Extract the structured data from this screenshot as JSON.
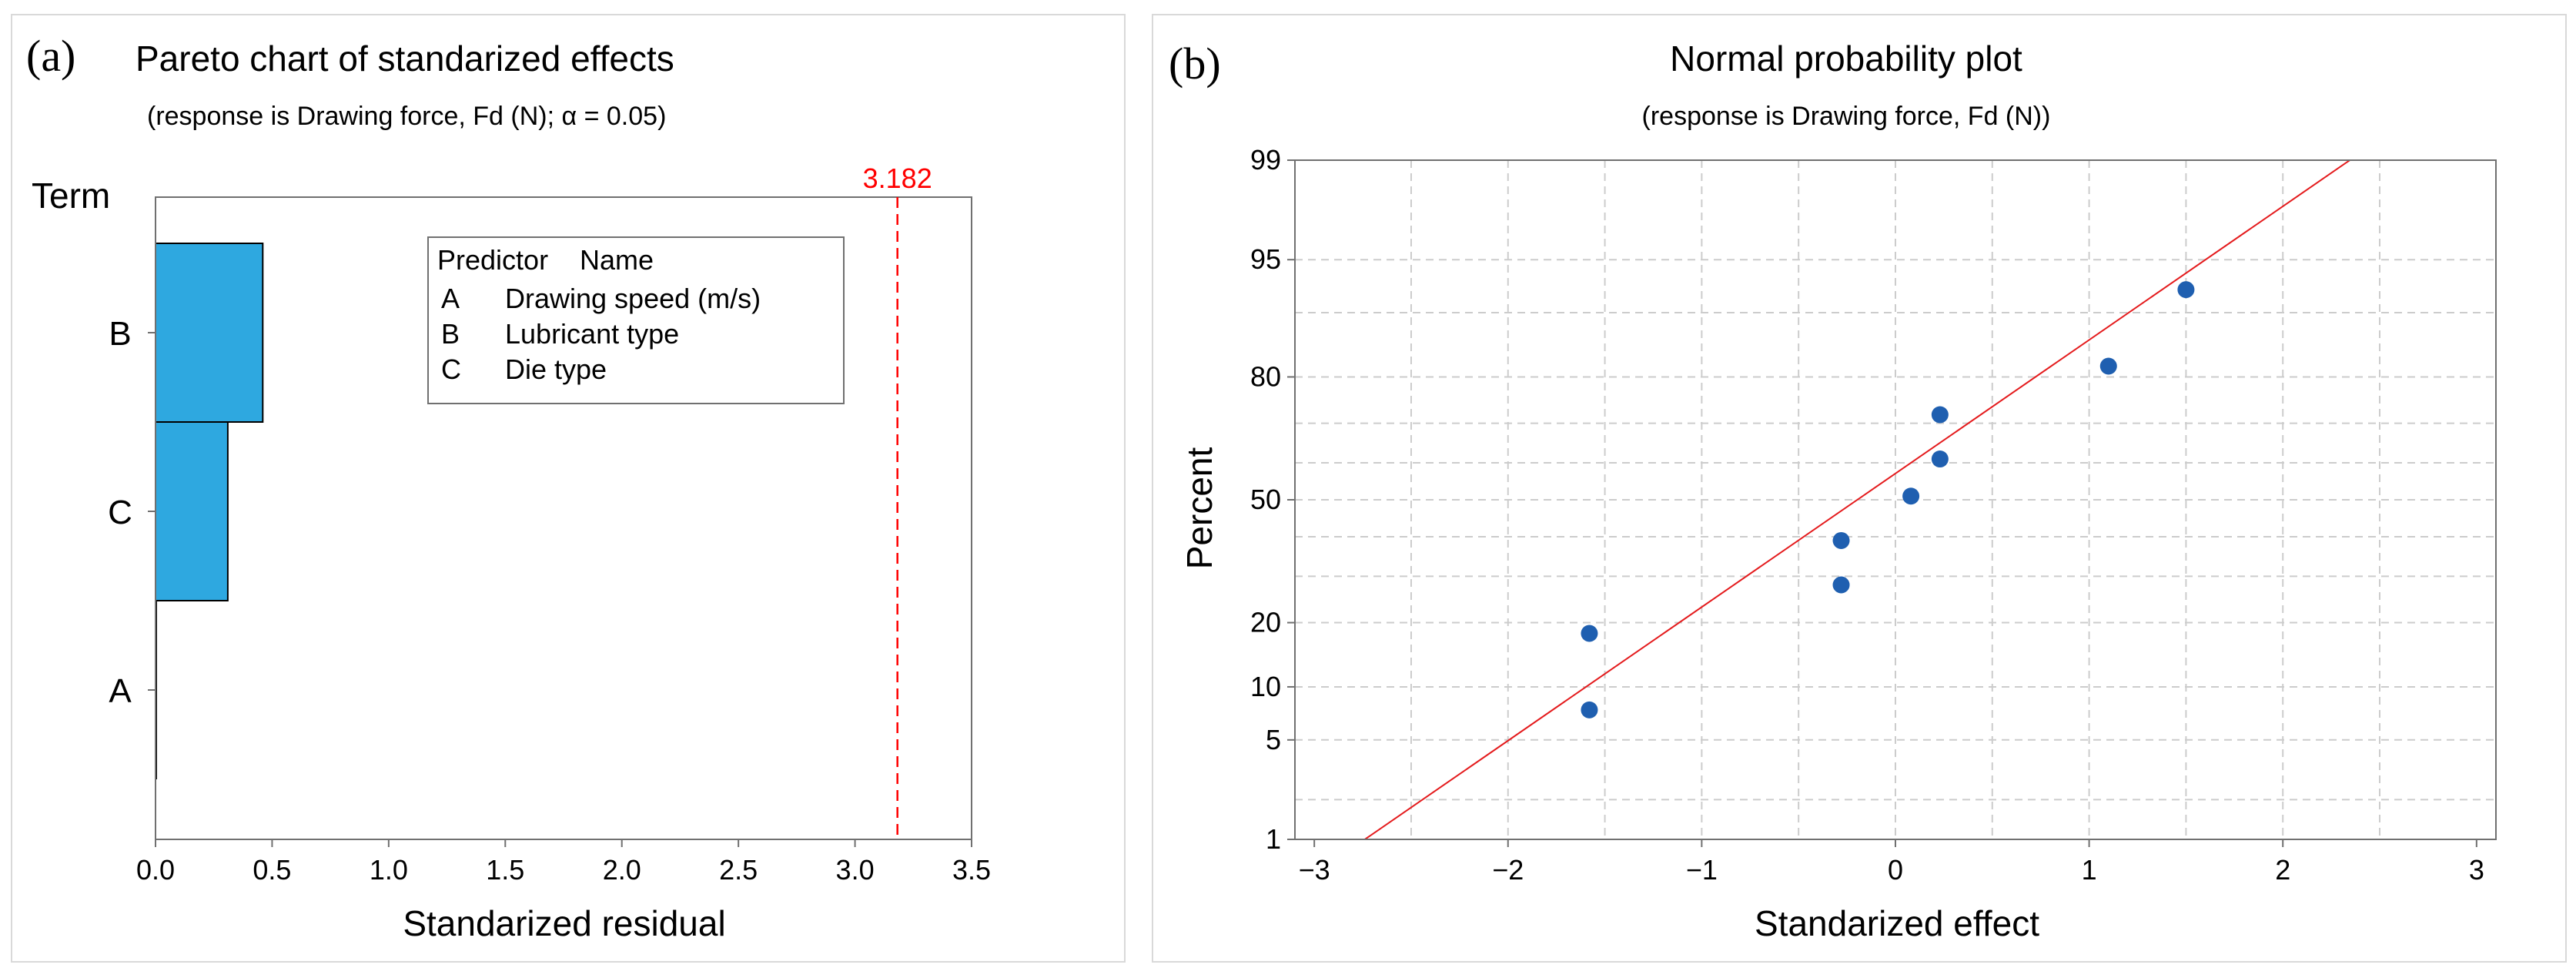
{
  "colors": {
    "bar": "#2ea8e0",
    "bar_edge": "#000000",
    "ref_line": "#ff0000",
    "point": "#1f5fb0",
    "fit_line": "#e41a1c",
    "grid": "#cccccc"
  },
  "chart_data": [
    {
      "panel_label": "(a)",
      "type": "bar",
      "orientation": "horizontal",
      "title": "Pareto chart of standarized effects",
      "subtitle": "(response is Drawing force, Fd (N); α = 0.05)",
      "ylabel": "Term",
      "xlabel": "Standarized residual",
      "categories": [
        "B",
        "C",
        "A"
      ],
      "values": [
        0.46,
        0.31,
        0.0
      ],
      "xlim": [
        0,
        3.5
      ],
      "xticks": [
        "0.0",
        "0.5",
        "1.0",
        "1.5",
        "2.0",
        "2.5",
        "3.0",
        "3.5"
      ],
      "reference_line": {
        "value": 3.182,
        "label": "3.182"
      },
      "legend": {
        "header": [
          "Predictor",
          "Name"
        ],
        "rows": [
          [
            "A",
            "Drawing speed (m/s)"
          ],
          [
            "B",
            "Lubricant type"
          ],
          [
            "C",
            "Die type"
          ]
        ],
        "placement": "top-center"
      }
    },
    {
      "panel_label": "(b)",
      "type": "scatter",
      "title": "Normal probability plot",
      "subtitle": "(response is Drawing force, Fd (N))",
      "xlabel": "Standarized effect",
      "ylabel": "Percent",
      "xlim": [
        -3.1,
        3.1
      ],
      "xticks": [
        "−3",
        "−2",
        "−1",
        "0",
        "1",
        "2",
        "3"
      ],
      "yticks": [
        "1",
        "5",
        "10",
        "20",
        "50",
        "80",
        "95",
        "99"
      ],
      "ylim_percent": [
        1,
        99
      ],
      "points": [
        {
          "x": -1.58,
          "y": 7.5
        },
        {
          "x": -1.58,
          "y": 18
        },
        {
          "x": -0.28,
          "y": 28
        },
        {
          "x": -0.28,
          "y": 39
        },
        {
          "x": 0.08,
          "y": 51
        },
        {
          "x": 0.23,
          "y": 61
        },
        {
          "x": 0.23,
          "y": 72
        },
        {
          "x": 1.1,
          "y": 82
        },
        {
          "x": 1.5,
          "y": 92.5
        }
      ],
      "fit_line": {
        "intercept": 0.18,
        "slope": 0.915
      }
    }
  ]
}
